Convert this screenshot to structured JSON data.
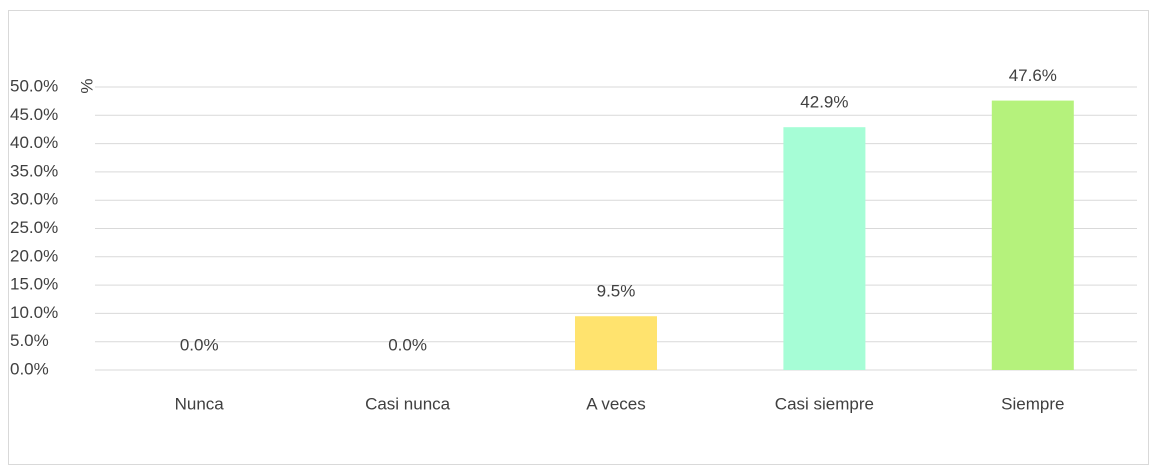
{
  "chart_data": {
    "type": "bar",
    "y_label": "%",
    "categories": [
      "Nunca",
      "Casi nunca",
      "A veces",
      "Casi siempre",
      "Siempre"
    ],
    "values": [
      0,
      0,
      9.5,
      42.9,
      47.6
    ],
    "value_labels": [
      "0.0%",
      "0.0%",
      "9.5%",
      "42.9%",
      "47.6%"
    ],
    "colors": [
      "#ffe36e",
      "#ffe36e",
      "#ffe36e",
      "#a6fdd6",
      "#b5f27c"
    ],
    "ylim": [
      0,
      50
    ],
    "yticks": [
      {
        "value": 0,
        "label": "0.0%"
      },
      {
        "value": 5,
        "label": "5.0%"
      },
      {
        "value": 10,
        "label": "10.0%"
      },
      {
        "value": 15,
        "label": "15.0%"
      },
      {
        "value": 20,
        "label": "20.0%"
      },
      {
        "value": 25,
        "label": "25.0%"
      },
      {
        "value": 30,
        "label": "30.0%"
      },
      {
        "value": 35,
        "label": "35.0%"
      },
      {
        "value": 40,
        "label": "40.0%"
      },
      {
        "value": 45,
        "label": "45.0%"
      },
      {
        "value": 50,
        "label": "50.0%"
      }
    ],
    "grid": true
  }
}
